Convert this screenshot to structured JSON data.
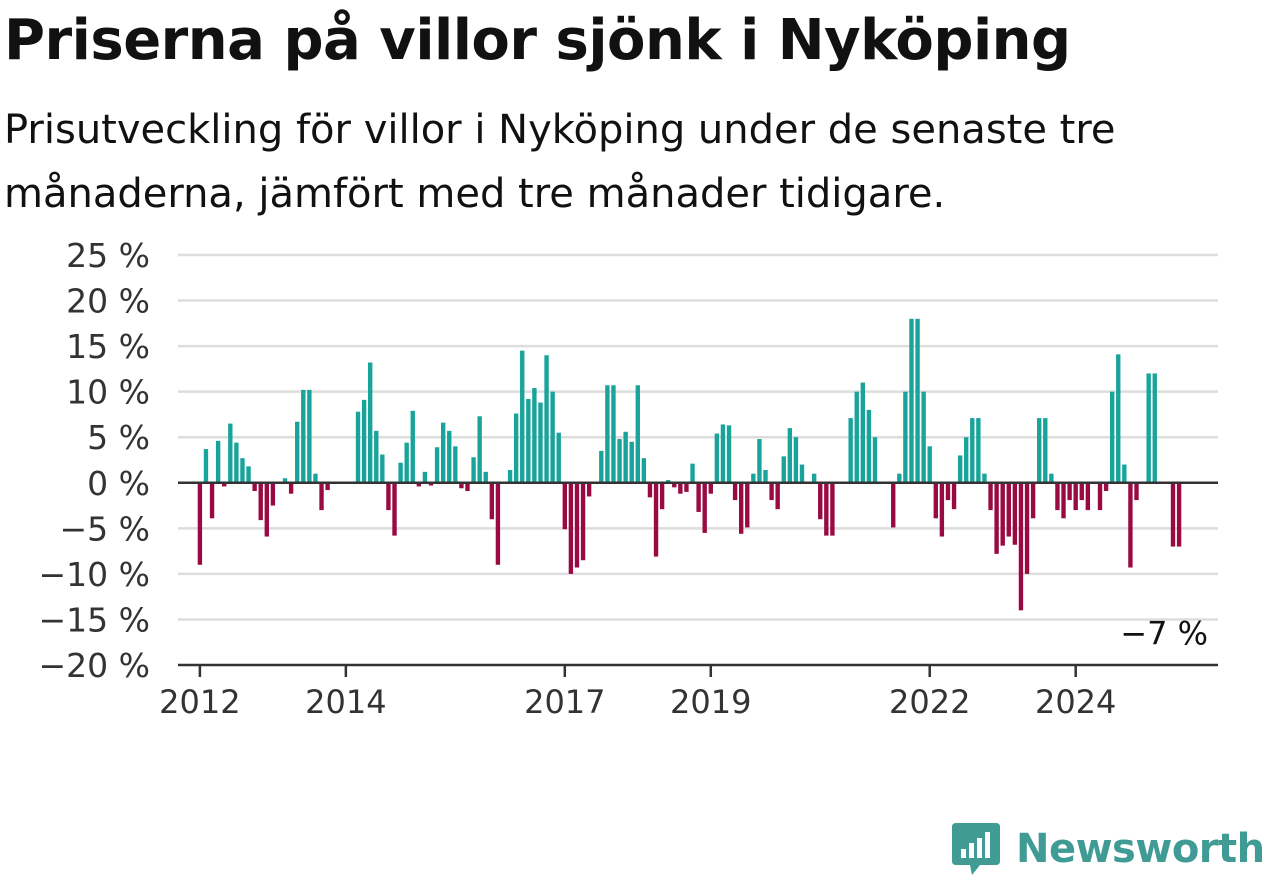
{
  "header": {
    "title": "Priserna på villor sjönk i Nyköping",
    "subtitle": "Prisutveckling för villor i Nyköping under de senaste tre månaderna, jämfört med tre månader tidigare."
  },
  "chart_data": {
    "type": "bar",
    "unit": "%",
    "ylim": [
      -20,
      25
    ],
    "yticks": [
      25,
      20,
      15,
      10,
      5,
      0,
      -5,
      -10,
      -15,
      -20
    ],
    "ytick_labels": [
      "25 %",
      "20 %",
      "15 %",
      "10 %",
      "5 %",
      "0 %",
      "−5 %",
      "−10 %",
      "−15 %",
      "−20 %"
    ],
    "x_start": {
      "year": 2012,
      "month": 1
    },
    "xticks": [
      2012,
      2014,
      2017,
      2019,
      2022,
      2024
    ],
    "grid": true,
    "colors": {
      "positive": "#19a49b",
      "negative": "#990a42",
      "grid": "#dddddd",
      "axis": "#333333"
    },
    "values": [
      -9,
      3.7,
      -3.9,
      4.6,
      -0.4,
      6.5,
      4.4,
      2.7,
      1.8,
      -0.9,
      -4.1,
      -5.9,
      -2.5,
      0,
      0.5,
      -1.2,
      6.7,
      10.2,
      10.2,
      1.0,
      -3,
      -0.8,
      0,
      0,
      0,
      0,
      7.8,
      9.1,
      13.2,
      5.7,
      3.1,
      -3,
      -5.8,
      2.2,
      4.4,
      7.9,
      -0.4,
      1.2,
      -0.3,
      3.9,
      6.6,
      5.7,
      4.0,
      -0.6,
      -0.9,
      2.8,
      7.3,
      1.2,
      -4,
      -9,
      0,
      1.4,
      7.6,
      14.5,
      9.2,
      10.4,
      8.8,
      14.0,
      10.0,
      5.5,
      -5.1,
      -10,
      -9.3,
      -8.5,
      -1.5,
      0,
      3.5,
      10.7,
      10.7,
      4.8,
      5.6,
      4.5,
      10.7,
      2.7,
      -1.6,
      -8.1,
      -2.9,
      0.3,
      -0.5,
      -1.2,
      -1.0,
      2.1,
      -3.2,
      -5.5,
      -1.2,
      5.4,
      6.4,
      6.3,
      -1.9,
      -5.6,
      -4.9,
      1.0,
      4.8,
      1.4,
      -1.9,
      -2.9,
      2.9,
      6.0,
      5.0,
      2.0,
      0,
      1.0,
      -4,
      -5.8,
      -5.8,
      0,
      0,
      7.1,
      10.0,
      11.0,
      8.0,
      5.0,
      0,
      0,
      -4.9,
      1.0,
      10.0,
      18.0,
      18.0,
      10.0,
      4.0,
      -3.9,
      -5.9,
      -1.9,
      -2.9,
      3.0,
      5.0,
      7.1,
      7.1,
      1.0,
      -3,
      -7.8,
      -6.9,
      -5.9,
      -6.8,
      -14,
      -10,
      -3.9,
      7.1,
      7.1,
      1.0,
      -3,
      -3.9,
      -1.9,
      -3,
      -1.9,
      -3,
      0,
      -3,
      -0.9,
      10.0,
      14.1,
      2.0,
      -9.3,
      -1.9,
      0,
      12.0,
      12.0,
      0,
      0,
      -7,
      -7
    ],
    "last_label": "−7 %"
  },
  "branding": {
    "name": "Newsworthy",
    "icon": "newsworthy-logo-icon"
  }
}
